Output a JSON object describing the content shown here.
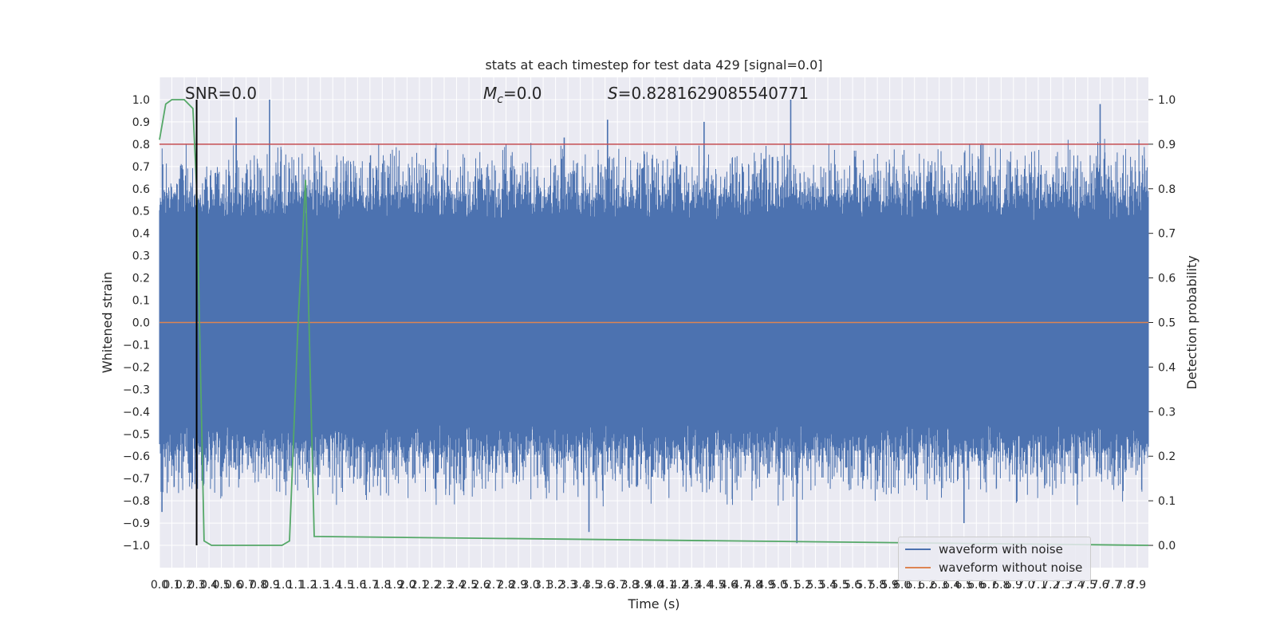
{
  "chart_data": {
    "type": "line",
    "title": "stats at each timestep for test data 429 [signal=0.0]",
    "xlabel": "Time (s)",
    "ylabel": "Whitened strain",
    "y2label": "Detection probability",
    "xlim": [
      0.0,
      7.99
    ],
    "ylim": [
      -1.1,
      1.1
    ],
    "y2lim": [
      -0.05,
      1.05
    ],
    "x_ticks": [
      "0.0",
      "0.1",
      "0.2",
      "0.3",
      "0.4",
      "0.5",
      "0.6",
      "0.7",
      "0.8",
      "0.9",
      "1.0",
      "1.1",
      "1.2",
      "1.3",
      "1.4",
      "1.5",
      "1.6",
      "1.7",
      "1.8",
      "1.9",
      "2.0",
      "2.1",
      "2.2",
      "2.3",
      "2.4",
      "2.5",
      "2.6",
      "2.7",
      "2.8",
      "2.9",
      "3.0",
      "3.1",
      "3.2",
      "3.3",
      "3.4",
      "3.5",
      "3.6",
      "3.7",
      "3.8",
      "3.9",
      "4.0",
      "4.1",
      "4.2",
      "4.3",
      "4.4",
      "4.5",
      "4.6",
      "4.7",
      "4.8",
      "4.9",
      "5.0",
      "5.1",
      "5.2",
      "5.3",
      "5.4",
      "5.5",
      "5.6",
      "5.7",
      "5.8",
      "5.9",
      "6.0",
      "6.1",
      "6.2",
      "6.3",
      "6.4",
      "6.5",
      "6.6",
      "6.7",
      "6.8",
      "6.9",
      "7.0",
      "7.1",
      "7.2",
      "7.3",
      "7.4",
      "7.5",
      "7.6",
      "7.7",
      "7.8",
      "7.9"
    ],
    "y_ticks": [
      "1.0",
      "0.9",
      "0.8",
      "0.7",
      "0.6",
      "0.5",
      "0.4",
      "0.3",
      "0.2",
      "0.1",
      "0.0",
      "−0.1",
      "−0.2",
      "−0.3",
      "−0.4",
      "−0.5",
      "−0.6",
      "−0.7",
      "−0.8",
      "−0.9",
      "−1.0"
    ],
    "y2_ticks": [
      "1.0",
      "0.9",
      "0.8",
      "0.7",
      "0.6",
      "0.5",
      "0.4",
      "0.3",
      "0.2",
      "0.1",
      "0.0"
    ],
    "annotations": {
      "snr": "SNR=0.0",
      "mc_symbol": "M",
      "mc_sub": "c",
      "mc_value": "=0.0",
      "s_symbol": "S",
      "s_value": "=0.8281629085540771"
    },
    "series": [
      {
        "name": "waveform with noise",
        "color": "#4c72b0",
        "note": "dense noise trace spanning roughly -1.0 to 1.0",
        "seed": 429,
        "amplitude_core": 0.45,
        "spikes": [
          {
            "x": 0.3,
            "y": 0.83
          },
          {
            "x": 0.62,
            "y": 0.92
          },
          {
            "x": 0.89,
            "y": 1.0
          },
          {
            "x": 1.1,
            "y": 0.66
          },
          {
            "x": 3.27,
            "y": 0.83
          },
          {
            "x": 3.62,
            "y": 0.91
          },
          {
            "x": 4.4,
            "y": 0.9
          },
          {
            "x": 5.1,
            "y": 1.0
          },
          {
            "x": 5.15,
            "y": -0.99
          },
          {
            "x": 7.6,
            "y": 0.98
          },
          {
            "x": 3.47,
            "y": -0.94
          },
          {
            "x": 6.5,
            "y": -0.9
          },
          {
            "x": 0.02,
            "y": -0.85
          }
        ]
      },
      {
        "name": "waveform without noise",
        "color": "#dd8452",
        "x": [
          0.0,
          7.99
        ],
        "y": [
          0.0,
          0.0
        ]
      }
    ],
    "detection_probability": {
      "color": "#55a868",
      "x": [
        0.0,
        0.05,
        0.1,
        0.2,
        0.27,
        0.3,
        0.36,
        0.42,
        0.99,
        1.05,
        1.12,
        1.18,
        1.25,
        7.99
      ],
      "y": [
        0.91,
        0.99,
        1.0,
        1.0,
        0.98,
        0.8,
        0.01,
        0.0,
        0.0,
        0.01,
        0.5,
        0.82,
        0.02,
        0.0
      ]
    },
    "threshold": {
      "color": "#c44e52",
      "y2": 0.9
    },
    "event_marker": {
      "color": "#000000",
      "x": 0.3
    },
    "legend_position": "lower right",
    "grid": true,
    "background": "#eaeaf2"
  }
}
